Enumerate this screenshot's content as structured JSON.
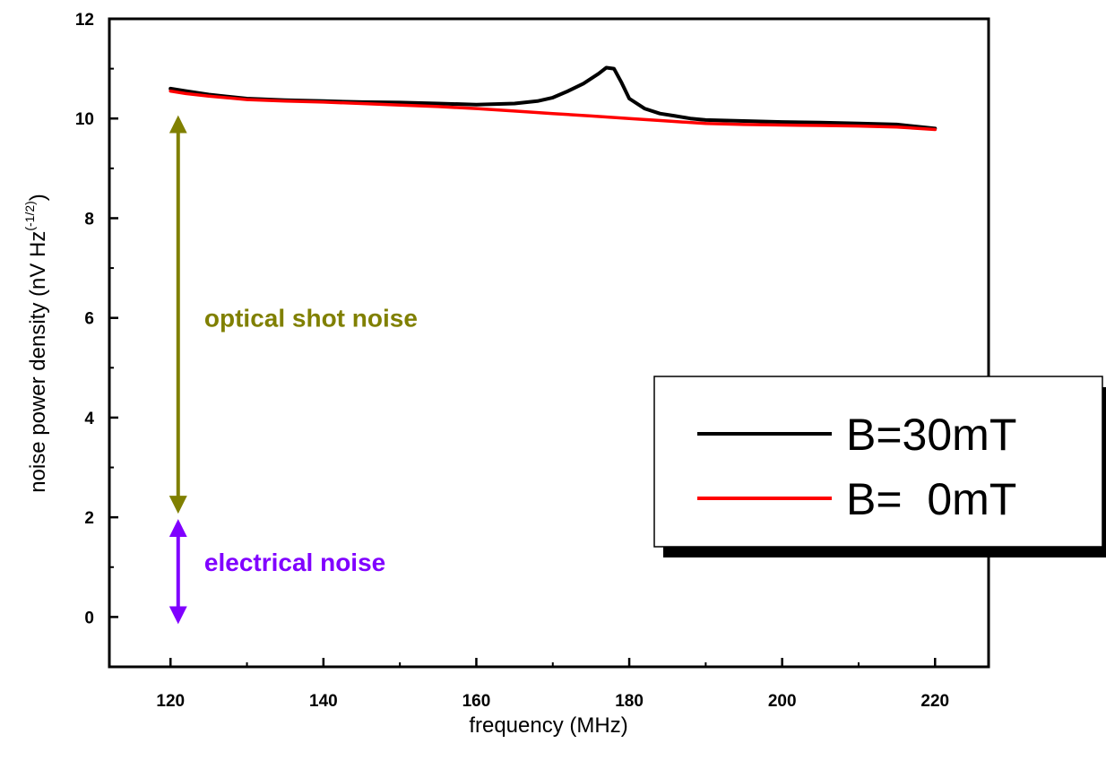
{
  "chart_data": {
    "type": "line",
    "xlabel": "frequency (MHz)",
    "ylabel": "noise power density (nV Hz",
    "ylabel_sup": "(-1/2)",
    "ylabel_close": ")",
    "xlim": [
      112,
      227
    ],
    "ylim": [
      -1,
      12
    ],
    "xticks": [
      120,
      140,
      160,
      180,
      200,
      220
    ],
    "yticks": [
      0,
      2,
      4,
      6,
      8,
      10,
      12
    ],
    "xtick_labels": [
      "120",
      "140",
      "160",
      "180",
      "200",
      "220"
    ],
    "ytick_labels": [
      "0",
      "2",
      "4",
      "6",
      "8",
      "10",
      "12"
    ],
    "grid": false,
    "legend_position": "right",
    "series": [
      {
        "name": "B=30mT",
        "color": "#000000",
        "x": [
          120,
          122,
          125,
          130,
          135,
          140,
          145,
          150,
          155,
          160,
          165,
          168,
          170,
          172,
          174,
          176,
          177,
          178,
          179,
          180,
          182,
          184,
          186,
          188,
          190,
          195,
          200,
          205,
          210,
          215,
          220
        ],
        "y": [
          10.6,
          10.55,
          10.48,
          10.4,
          10.37,
          10.35,
          10.33,
          10.32,
          10.3,
          10.28,
          10.3,
          10.35,
          10.42,
          10.55,
          10.7,
          10.9,
          11.02,
          11.0,
          10.72,
          10.4,
          10.2,
          10.1,
          10.05,
          10.0,
          9.97,
          9.95,
          9.93,
          9.92,
          9.9,
          9.88,
          9.8
        ]
      },
      {
        "name": "B=  0mT",
        "color": "#ff0000",
        "x": [
          120,
          122,
          125,
          130,
          135,
          140,
          145,
          150,
          155,
          160,
          165,
          170,
          175,
          180,
          185,
          190,
          195,
          200,
          205,
          210,
          215,
          220
        ],
        "y": [
          10.55,
          10.5,
          10.45,
          10.38,
          10.35,
          10.33,
          10.3,
          10.27,
          10.24,
          10.2,
          10.15,
          10.1,
          10.05,
          10.0,
          9.95,
          9.9,
          9.88,
          9.87,
          9.86,
          9.85,
          9.83,
          9.78
        ]
      }
    ],
    "annotations": [
      {
        "text": "optical shot noise",
        "color": "#808000",
        "arrow_x": 121,
        "arrow_y_from": 10.1,
        "arrow_y_to": 2.0,
        "label_x": 125,
        "label_y": 6.0
      },
      {
        "text": "electrical noise",
        "color": "#8000ff",
        "arrow_x": 121,
        "arrow_y_from": 2.0,
        "arrow_y_to": 0.0,
        "label_x": 125,
        "label_y": 1.1
      }
    ]
  }
}
